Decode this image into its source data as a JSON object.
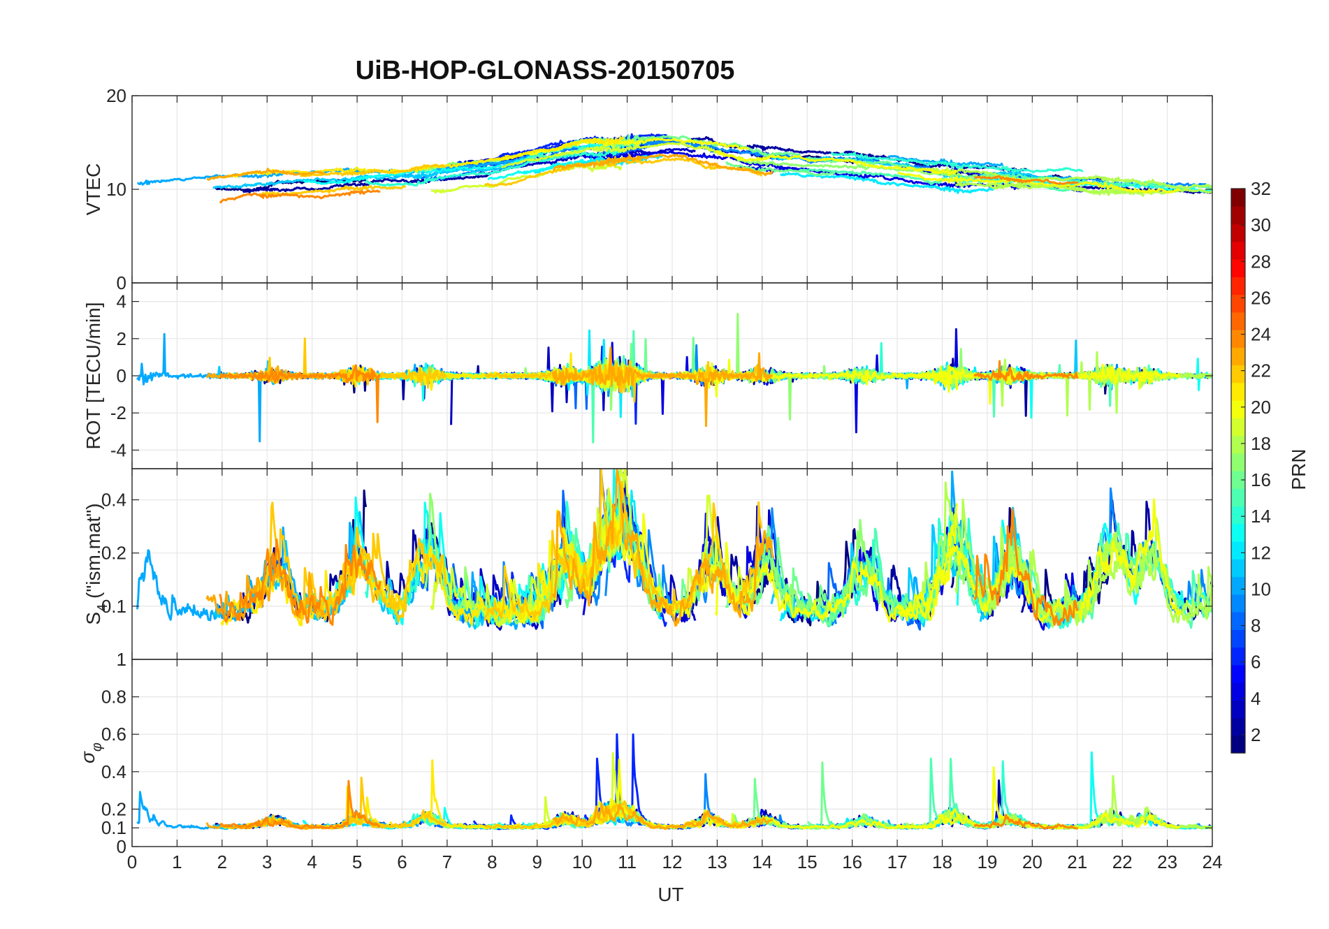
{
  "title": "UiB-HOP-GLONASS-20150705",
  "xlabel": "UT",
  "colorbar": {
    "label": "PRN",
    "ticks": [
      "2",
      "4",
      "6",
      "8",
      "10",
      "12",
      "14",
      "16",
      "18",
      "20",
      "22",
      "24",
      "26",
      "28",
      "30",
      "32"
    ],
    "range": [
      1,
      32
    ]
  },
  "chart_data": [
    {
      "type": "line",
      "panel": "VTEC",
      "ylabel": "VTEC",
      "xlim": [
        0,
        24
      ],
      "ylim": [
        0,
        20
      ],
      "yticks": [
        "0",
        "10",
        "20"
      ],
      "grid": true,
      "x_ticks": [
        "0",
        "1",
        "2",
        "3",
        "4",
        "5",
        "6",
        "7",
        "8",
        "9",
        "10",
        "11",
        "12",
        "13",
        "14",
        "15",
        "16",
        "17",
        "18",
        "19",
        "20",
        "21",
        "22",
        "23",
        "24"
      ],
      "series_note": "traces colored by PRN (1-24)",
      "approx_envelope": {
        "x": [
          0,
          2,
          4,
          6,
          8,
          10,
          12,
          14,
          16,
          18,
          20,
          22,
          24
        ],
        "y": [
          9.5,
          10,
          10.5,
          11,
          12,
          14,
          14.5,
          13,
          12.5,
          11.5,
          11,
          10.5,
          10
        ]
      }
    },
    {
      "type": "line",
      "panel": "ROT",
      "ylabel": "ROT [TECU/min]",
      "xlim": [
        0,
        24
      ],
      "ylim": [
        -5,
        5
      ],
      "yticks": [
        "-4",
        "-2",
        "0",
        "2",
        "4"
      ],
      "grid": true
    },
    {
      "type": "line",
      "panel": "S4",
      "ylabel": "S₄ (\"ism.mat\")",
      "ylabel_main": "S",
      "ylabel_sub": "4",
      "ylabel_rest": " (\"ism.mat\")",
      "xlim": [
        0,
        24
      ],
      "ylim": [
        0.05,
        0.6
      ],
      "yscale": "log",
      "yticks": [
        "0.1",
        "0.2",
        "0.4"
      ],
      "grid": true
    },
    {
      "type": "line",
      "panel": "sigma_phi",
      "ylabel": "σφ",
      "ylabel_main": "σ",
      "ylabel_sub": "φ",
      "xlim": [
        0,
        24
      ],
      "ylim": [
        0,
        1
      ],
      "yticks": [
        "0",
        "0.1",
        "0.2",
        "0.4",
        "0.6",
        "0.8",
        "1"
      ],
      "grid": true
    }
  ]
}
